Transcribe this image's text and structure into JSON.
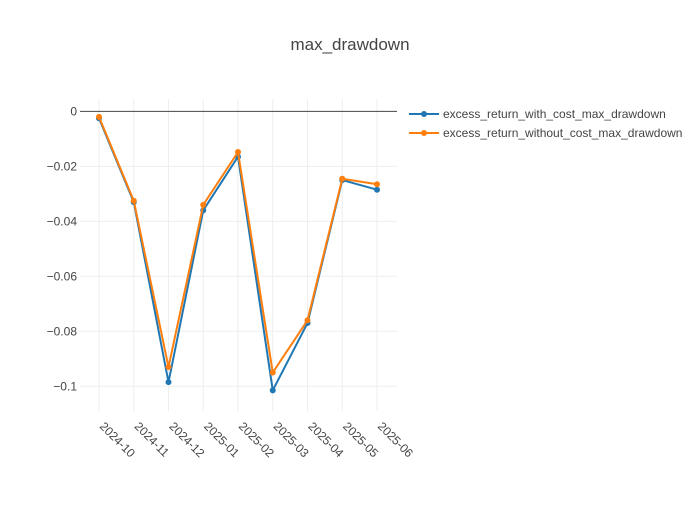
{
  "chart_data": {
    "type": "line",
    "title": "max_drawdown",
    "xlabel": "",
    "ylabel": "",
    "categories": [
      "2024-10",
      "2024-11",
      "2024-12",
      "2025-01",
      "2025-02",
      "2025-03",
      "2025-04",
      "2025-05",
      "2025-06"
    ],
    "series": [
      {
        "name": "excess_return_with_cost_max_drawdown",
        "color": "#1f77b4",
        "values": [
          -0.0025,
          -0.033,
          -0.0985,
          -0.036,
          -0.0165,
          -0.1015,
          -0.077,
          -0.025,
          -0.0285
        ]
      },
      {
        "name": "excess_return_without_cost_max_drawdown",
        "color": "#ff7f0e",
        "values": [
          -0.002,
          -0.0325,
          -0.093,
          -0.034,
          -0.0148,
          -0.095,
          -0.076,
          -0.0245,
          -0.0265
        ]
      }
    ],
    "yticks": [
      0,
      -0.02,
      -0.04,
      -0.06,
      -0.08,
      -0.1
    ],
    "ytick_labels": [
      "0",
      "−0.02",
      "−0.04",
      "−0.06",
      "−0.08",
      "−0.1"
    ],
    "ylim": [
      -0.109,
      0.0045
    ],
    "grid": true,
    "legend_position": "top-right",
    "x_tick_rotation": "diagonal"
  }
}
